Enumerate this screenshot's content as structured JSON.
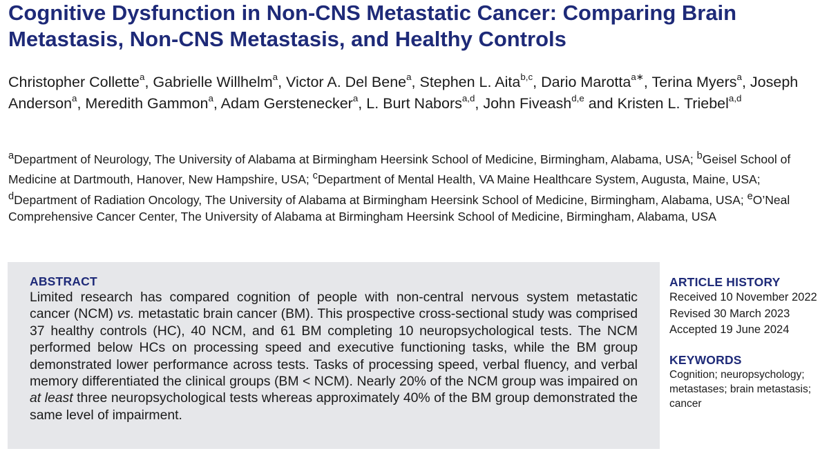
{
  "title": "Cognitive Dysfunction in Non-CNS Metastatic Cancer: Comparing Brain Metastasis, Non-CNS Metastasis, and Healthy Controls",
  "authors": [
    {
      "name": "Christopher Collette",
      "sup": "a",
      "sep": ", "
    },
    {
      "name": "Gabrielle Willhelm",
      "sup": "a",
      "sep": ", "
    },
    {
      "name": "Victor A. Del Bene",
      "sup": "a",
      "sep": ", "
    },
    {
      "name": "Stephen L. Aita",
      "sup": "b,c",
      "sep": ", "
    },
    {
      "name": "Dario Marotta",
      "sup": "a∗",
      "sep": ", "
    },
    {
      "name": "Terina Myers",
      "sup": "a",
      "sep": ", "
    },
    {
      "name": "Joseph Anderson",
      "sup": "a",
      "sep": ", "
    },
    {
      "name": "Meredith Gammon",
      "sup": "a",
      "sep": ", "
    },
    {
      "name": "Adam Gerstenecker",
      "sup": "a",
      "sep": ", "
    },
    {
      "name": "L. Burt Nabors",
      "sup": "a,d",
      "sep": ", "
    },
    {
      "name": "John Fiveash",
      "sup": "d,e",
      "sep": " and "
    },
    {
      "name": "Kristen L. Triebel",
      "sup": "a,d",
      "sep": ""
    }
  ],
  "affiliations": [
    {
      "sup": "a",
      "text": "Department of Neurology, The University of Alabama at Birmingham Heersink School of Medicine, Birmingham, Alabama, USA;"
    },
    {
      "sup": "b",
      "text": "Geisel School of Medicine at Dartmouth, Hanover, New Hampshire, USA;"
    },
    {
      "sup": "c",
      "text": "Department of Mental Health, VA Maine Healthcare System, Augusta, Maine, USA;"
    },
    {
      "sup": "d",
      "text": "Department of Radiation Oncology, The University of Alabama at Birmingham Heersink School of Medicine, Birmingham, Alabama, USA;"
    },
    {
      "sup": "e",
      "text": "O’Neal Comprehensive Cancer Center, The University of Alabama at Birmingham Heersink School of Medicine, Birmingham, Alabama, USA"
    }
  ],
  "abstract": {
    "heading": "ABSTRACT",
    "p1": "Limited research has compared cognition of people with non-central nervous system metastatic cancer (NCM) ",
    "vs": "vs.",
    "p2": " metastatic brain cancer (BM). This prospective cross-sectional study was comprised 37 healthy controls (HC), 40 NCM, and 61 BM completing 10 neuropsychological tests. The NCM performed below HCs on processing speed and executive functioning tasks, while the BM group demonstrated lower performance across tests. Tasks of processing speed, verbal fluency, and verbal memory differentiated the clinical groups (BM < NCM). Nearly 20% of the NCM group was impaired on ",
    "at_least": "at least",
    "p3": " three neuropsychological tests whereas approximately 40% of the BM group demonstrated the same level of impairment."
  },
  "article_history": {
    "heading": "ARTICLE HISTORY",
    "received": "Received 10 November 2022",
    "revised": "Revised 30 March 2023",
    "accepted": "Accepted 19 June 2024"
  },
  "keywords": {
    "heading": "KEYWORDS",
    "text": "Cognition; neuropsychology; metastases; brain metastasis; cancer"
  },
  "colors": {
    "heading_blue": "#1e2a78",
    "abstract_bg": "#e6e7ea"
  }
}
